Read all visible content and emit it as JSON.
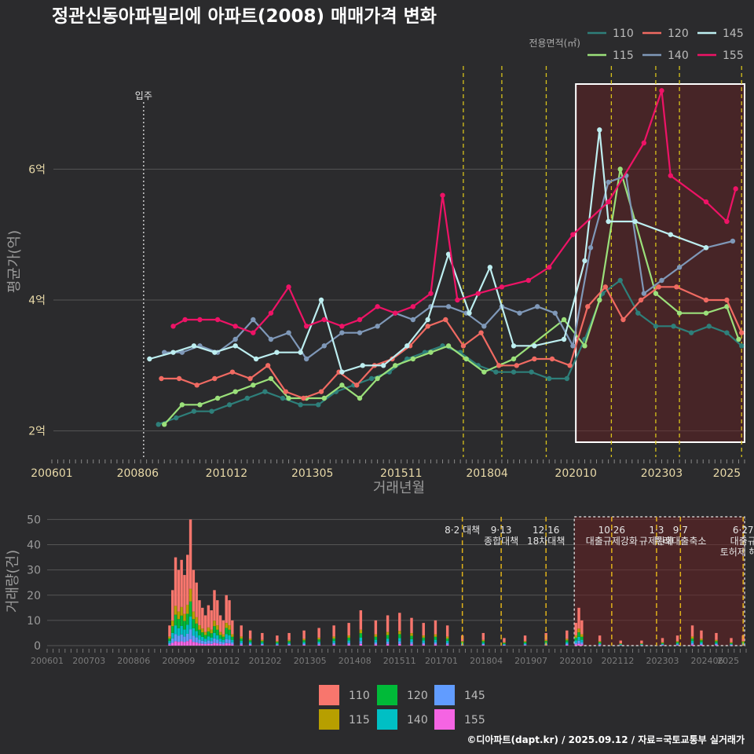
{
  "title": "정관신동아파밀리에 아파트(2008) 매매가격 변화",
  "credit": "©디아파트(dapt.kr) / 2025.09.12 / 자료=국토교통부 실거래가",
  "colors": {
    "110": "#2e7f7a",
    "115": "#9be07a",
    "120": "#f06a62",
    "140": "#7f98b8",
    "145": "#bdeef0",
    "155": "#ee1366"
  },
  "bar_colors": {
    "110": "#f8766d",
    "115": "#b79f00",
    "120": "#00ba38",
    "140": "#00bfc4",
    "145": "#619cff",
    "155": "#f564e3"
  },
  "chart_data": [
    {
      "type": "line",
      "title": "정관신동아파밀리에 아파트(2008) 매매가격 변화",
      "xlabel": "거래년월",
      "ylabel": "평균가(억)",
      "x_ticks": [
        "200601",
        "200806",
        "201012",
        "201305",
        "201511",
        "201804",
        "202010",
        "202303",
        "2025"
      ],
      "y_ticks": [
        "2억",
        "4억",
        "6억"
      ],
      "ylim": [
        1.6,
        7.6
      ],
      "legend_title": "전용면적(㎡)",
      "legend": [
        "110",
        "115",
        "120",
        "140",
        "145",
        "155"
      ],
      "annotation": "입주",
      "series": [
        {
          "name": "110",
          "points": [
            [
              "2009-01",
              2.1
            ],
            [
              "2009-07",
              2.2
            ],
            [
              "2010-01",
              2.3
            ],
            [
              "2010-07",
              2.3
            ],
            [
              "2011-01",
              2.4
            ],
            [
              "2011-07",
              2.5
            ],
            [
              "2012-01",
              2.6
            ],
            [
              "2012-07",
              2.5
            ],
            [
              "2013-01",
              2.4
            ],
            [
              "2013-07",
              2.4
            ],
            [
              "2014-01",
              2.6
            ],
            [
              "2014-07",
              2.7
            ],
            [
              "2015-01",
              2.8
            ],
            [
              "2015-07",
              2.9
            ],
            [
              "2016-01",
              3.1
            ],
            [
              "2016-07",
              3.2
            ],
            [
              "2017-01",
              3.3
            ],
            [
              "2017-07",
              3.2
            ],
            [
              "2018-01",
              3.0
            ],
            [
              "2018-07",
              2.9
            ],
            [
              "2019-01",
              2.9
            ],
            [
              "2019-07",
              2.9
            ],
            [
              "2020-01",
              2.8
            ],
            [
              "2020-07",
              2.8
            ],
            [
              "2021-01",
              3.4
            ],
            [
              "2021-07",
              4.1
            ],
            [
              "2022-01",
              4.3
            ],
            [
              "2022-07",
              3.8
            ],
            [
              "2023-01",
              3.6
            ],
            [
              "2023-07",
              3.6
            ],
            [
              "2024-01",
              3.5
            ],
            [
              "2024-07",
              3.6
            ],
            [
              "2025-01",
              3.5
            ],
            [
              "2025-06",
              3.3
            ]
          ]
        },
        {
          "name": "115",
          "points": [
            [
              "2009-03",
              2.1
            ],
            [
              "2009-09",
              2.4
            ],
            [
              "2010-03",
              2.4
            ],
            [
              "2010-09",
              2.5
            ],
            [
              "2011-03",
              2.6
            ],
            [
              "2011-09",
              2.7
            ],
            [
              "2012-03",
              2.8
            ],
            [
              "2012-09",
              2.5
            ],
            [
              "2013-03",
              2.5
            ],
            [
              "2013-09",
              2.5
            ],
            [
              "2014-03",
              2.7
            ],
            [
              "2014-09",
              2.5
            ],
            [
              "2015-03",
              2.8
            ],
            [
              "2015-09",
              3.0
            ],
            [
              "2016-03",
              3.1
            ],
            [
              "2016-09",
              3.2
            ],
            [
              "2017-03",
              3.3
            ],
            [
              "2017-09",
              3.1
            ],
            [
              "2018-03",
              2.9
            ],
            [
              "2019-01",
              3.1
            ],
            [
              "2020-06",
              3.7
            ],
            [
              "2021-01",
              3.3
            ],
            [
              "2021-06",
              4.0
            ],
            [
              "2022-01",
              6.0
            ],
            [
              "2023-01",
              4.1
            ],
            [
              "2023-09",
              3.8
            ],
            [
              "2024-06",
              3.8
            ],
            [
              "2025-01",
              3.9
            ],
            [
              "2025-05",
              3.4
            ]
          ]
        },
        {
          "name": "120",
          "points": [
            [
              "2009-02",
              2.8
            ],
            [
              "2009-08",
              2.8
            ],
            [
              "2010-02",
              2.7
            ],
            [
              "2010-08",
              2.8
            ],
            [
              "2011-02",
              2.9
            ],
            [
              "2011-08",
              2.8
            ],
            [
              "2012-02",
              3.0
            ],
            [
              "2012-08",
              2.6
            ],
            [
              "2013-02",
              2.5
            ],
            [
              "2013-08",
              2.6
            ],
            [
              "2014-02",
              2.9
            ],
            [
              "2014-08",
              2.7
            ],
            [
              "2015-02",
              3.0
            ],
            [
              "2015-08",
              3.1
            ],
            [
              "2016-02",
              3.3
            ],
            [
              "2016-08",
              3.6
            ],
            [
              "2017-02",
              3.7
            ],
            [
              "2017-08",
              3.3
            ],
            [
              "2018-02",
              3.5
            ],
            [
              "2018-08",
              3.0
            ],
            [
              "2019-02",
              3.0
            ],
            [
              "2019-08",
              3.1
            ],
            [
              "2020-02",
              3.1
            ],
            [
              "2020-08",
              3.0
            ],
            [
              "2021-02",
              3.9
            ],
            [
              "2021-08",
              4.2
            ],
            [
              "2022-02",
              3.7
            ],
            [
              "2022-08",
              4.0
            ],
            [
              "2023-02",
              4.2
            ],
            [
              "2023-08",
              4.2
            ],
            [
              "2024-06",
              4.0
            ],
            [
              "2025-01",
              4.0
            ],
            [
              "2025-06",
              3.5
            ]
          ]
        },
        {
          "name": "140",
          "points": [
            [
              "2009-03",
              3.2
            ],
            [
              "2009-09",
              3.2
            ],
            [
              "2010-03",
              3.3
            ],
            [
              "2010-09",
              3.2
            ],
            [
              "2011-03",
              3.4
            ],
            [
              "2011-09",
              3.7
            ],
            [
              "2012-03",
              3.4
            ],
            [
              "2012-09",
              3.5
            ],
            [
              "2013-03",
              3.1
            ],
            [
              "2013-09",
              3.3
            ],
            [
              "2014-03",
              3.5
            ],
            [
              "2014-09",
              3.5
            ],
            [
              "2015-03",
              3.6
            ],
            [
              "2015-09",
              3.8
            ],
            [
              "2016-03",
              3.7
            ],
            [
              "2016-09",
              3.9
            ],
            [
              "2017-03",
              3.9
            ],
            [
              "2017-09",
              3.8
            ],
            [
              "2018-03",
              3.6
            ],
            [
              "2018-09",
              3.9
            ],
            [
              "2019-03",
              3.8
            ],
            [
              "2019-09",
              3.9
            ],
            [
              "2020-03",
              3.8
            ],
            [
              "2020-09",
              3.3
            ],
            [
              "2021-03",
              4.8
            ],
            [
              "2021-09",
              5.8
            ],
            [
              "2022-03",
              5.9
            ],
            [
              "2022-09",
              4.1
            ],
            [
              "2023-03",
              4.3
            ],
            [
              "2023-09",
              4.5
            ],
            [
              "2024-06",
              4.8
            ],
            [
              "2025-03",
              4.9
            ]
          ]
        },
        {
          "name": "145",
          "points": [
            [
              "2008-10",
              3.1
            ],
            [
              "2009-06",
              3.2
            ],
            [
              "2010-01",
              3.3
            ],
            [
              "2010-08",
              3.2
            ],
            [
              "2011-03",
              3.3
            ],
            [
              "2011-10",
              3.1
            ],
            [
              "2012-05",
              3.2
            ],
            [
              "2013-01",
              3.2
            ],
            [
              "2013-08",
              4.0
            ],
            [
              "2014-03",
              2.9
            ],
            [
              "2014-10",
              3.0
            ],
            [
              "2015-05",
              3.0
            ],
            [
              "2016-01",
              3.3
            ],
            [
              "2016-08",
              3.7
            ],
            [
              "2017-03",
              4.7
            ],
            [
              "2017-10",
              3.8
            ],
            [
              "2018-05",
              4.5
            ],
            [
              "2019-01",
              3.3
            ],
            [
              "2019-08",
              3.3
            ],
            [
              "2020-06",
              3.4
            ],
            [
              "2021-01",
              4.6
            ],
            [
              "2021-06",
              6.6
            ],
            [
              "2021-09",
              5.2
            ],
            [
              "2022-06",
              5.2
            ],
            [
              "2023-06",
              5.0
            ],
            [
              "2024-06",
              4.8
            ]
          ]
        },
        {
          "name": "155",
          "points": [
            [
              "2009-06",
              3.6
            ],
            [
              "2009-10",
              3.7
            ],
            [
              "2010-03",
              3.7
            ],
            [
              "2010-09",
              3.7
            ],
            [
              "2011-03",
              3.6
            ],
            [
              "2011-09",
              3.5
            ],
            [
              "2012-03",
              3.8
            ],
            [
              "2012-09",
              4.2
            ],
            [
              "2013-03",
              3.6
            ],
            [
              "2013-09",
              3.7
            ],
            [
              "2014-03",
              3.6
            ],
            [
              "2014-09",
              3.7
            ],
            [
              "2015-03",
              3.9
            ],
            [
              "2015-09",
              3.8
            ],
            [
              "2016-03",
              3.9
            ],
            [
              "2016-09",
              4.1
            ],
            [
              "2017-01",
              5.6
            ],
            [
              "2017-06",
              4.0
            ],
            [
              "2018-01",
              4.1
            ],
            [
              "2018-09",
              4.2
            ],
            [
              "2019-06",
              4.3
            ],
            [
              "2020-01",
              4.5
            ],
            [
              "2020-09",
              5.0
            ],
            [
              "2021-09",
              5.5
            ],
            [
              "2022-09",
              6.4
            ],
            [
              "2023-03",
              7.2
            ],
            [
              "2023-06",
              5.9
            ],
            [
              "2024-06",
              5.5
            ],
            [
              "2025-01",
              5.2
            ],
            [
              "2025-04",
              5.7
            ]
          ]
        }
      ]
    },
    {
      "type": "bar",
      "xlabel": "",
      "ylabel": "거래량(건)",
      "x_ticks": [
        "200601",
        "200703",
        "200806",
        "200909",
        "201012",
        "201202",
        "201305",
        "201408",
        "201511",
        "201701",
        "201804",
        "201907",
        "202010",
        "202112",
        "202303",
        "202406",
        "2025"
      ],
      "y_ticks": [
        "0",
        "10",
        "20",
        "30",
        "40",
        "50"
      ],
      "ylim": [
        0,
        52
      ],
      "legend": [
        "110",
        "115",
        "120",
        "140",
        "145",
        "155"
      ],
      "monthly_volume": [
        [
          "2009-06",
          8
        ],
        [
          "2009-07",
          22
        ],
        [
          "2009-08",
          35
        ],
        [
          "2009-09",
          30
        ],
        [
          "2009-10",
          34
        ],
        [
          "2009-11",
          28
        ],
        [
          "2009-12",
          36
        ],
        [
          "2010-01",
          50
        ],
        [
          "2010-02",
          30
        ],
        [
          "2010-03",
          25
        ],
        [
          "2010-04",
          18
        ],
        [
          "2010-05",
          15
        ],
        [
          "2010-06",
          12
        ],
        [
          "2010-07",
          16
        ],
        [
          "2010-08",
          14
        ],
        [
          "2010-09",
          22
        ],
        [
          "2010-10",
          18
        ],
        [
          "2010-11",
          12
        ],
        [
          "2010-12",
          10
        ],
        [
          "2011-01",
          20
        ],
        [
          "2011-02",
          18
        ],
        [
          "2011-03",
          10
        ],
        [
          "2011-06",
          8
        ],
        [
          "2011-09",
          6
        ],
        [
          "2012-01",
          5
        ],
        [
          "2012-06",
          4
        ],
        [
          "2012-10",
          5
        ],
        [
          "2013-03",
          6
        ],
        [
          "2013-08",
          7
        ],
        [
          "2014-01",
          8
        ],
        [
          "2014-06",
          9
        ],
        [
          "2014-10",
          14
        ],
        [
          "2015-03",
          10
        ],
        [
          "2015-07",
          12
        ],
        [
          "2015-11",
          13
        ],
        [
          "2016-03",
          11
        ],
        [
          "2016-07",
          9
        ],
        [
          "2016-11",
          10
        ],
        [
          "2017-03",
          8
        ],
        [
          "2017-08",
          4
        ],
        [
          "2018-03",
          5
        ],
        [
          "2018-10",
          3
        ],
        [
          "2019-05",
          4
        ],
        [
          "2019-12",
          5
        ],
        [
          "2020-07",
          6
        ],
        [
          "2020-10",
          9
        ],
        [
          "2020-11",
          15
        ],
        [
          "2020-12",
          10
        ],
        [
          "2021-06",
          4
        ],
        [
          "2022-01",
          2
        ],
        [
          "2022-08",
          2
        ],
        [
          "2023-03",
          3
        ],
        [
          "2023-08",
          4
        ],
        [
          "2024-01",
          8
        ],
        [
          "2024-04",
          6
        ],
        [
          "2024-09",
          5
        ],
        [
          "2025-02",
          3
        ],
        [
          "2025-06",
          4
        ]
      ],
      "policies": [
        {
          "date": "2017-08",
          "label": "8·2 대책"
        },
        {
          "date": "2018-09",
          "label": "9·13"
        },
        {
          "date": "2018-09",
          "label": "종합대책"
        },
        {
          "date": "2019-12",
          "label": "12·16"
        },
        {
          "date": "2019-12",
          "label": "18차대책"
        },
        {
          "date": "2021-10",
          "label": "10·26"
        },
        {
          "date": "2021-10",
          "label": "대출규제강화"
        },
        {
          "date": "2023-01",
          "label": "1·3"
        },
        {
          "date": "2023-01",
          "label": "규제완화"
        },
        {
          "date": "2023-09",
          "label": "9·7"
        },
        {
          "date": "2023-09",
          "label": "특례대출축소"
        },
        {
          "date": "2025-06",
          "label": "6·27"
        },
        {
          "date": "2025-06",
          "label": "대출규"
        },
        {
          "date": "2025-06",
          "label": "토허제 해제"
        }
      ]
    }
  ]
}
